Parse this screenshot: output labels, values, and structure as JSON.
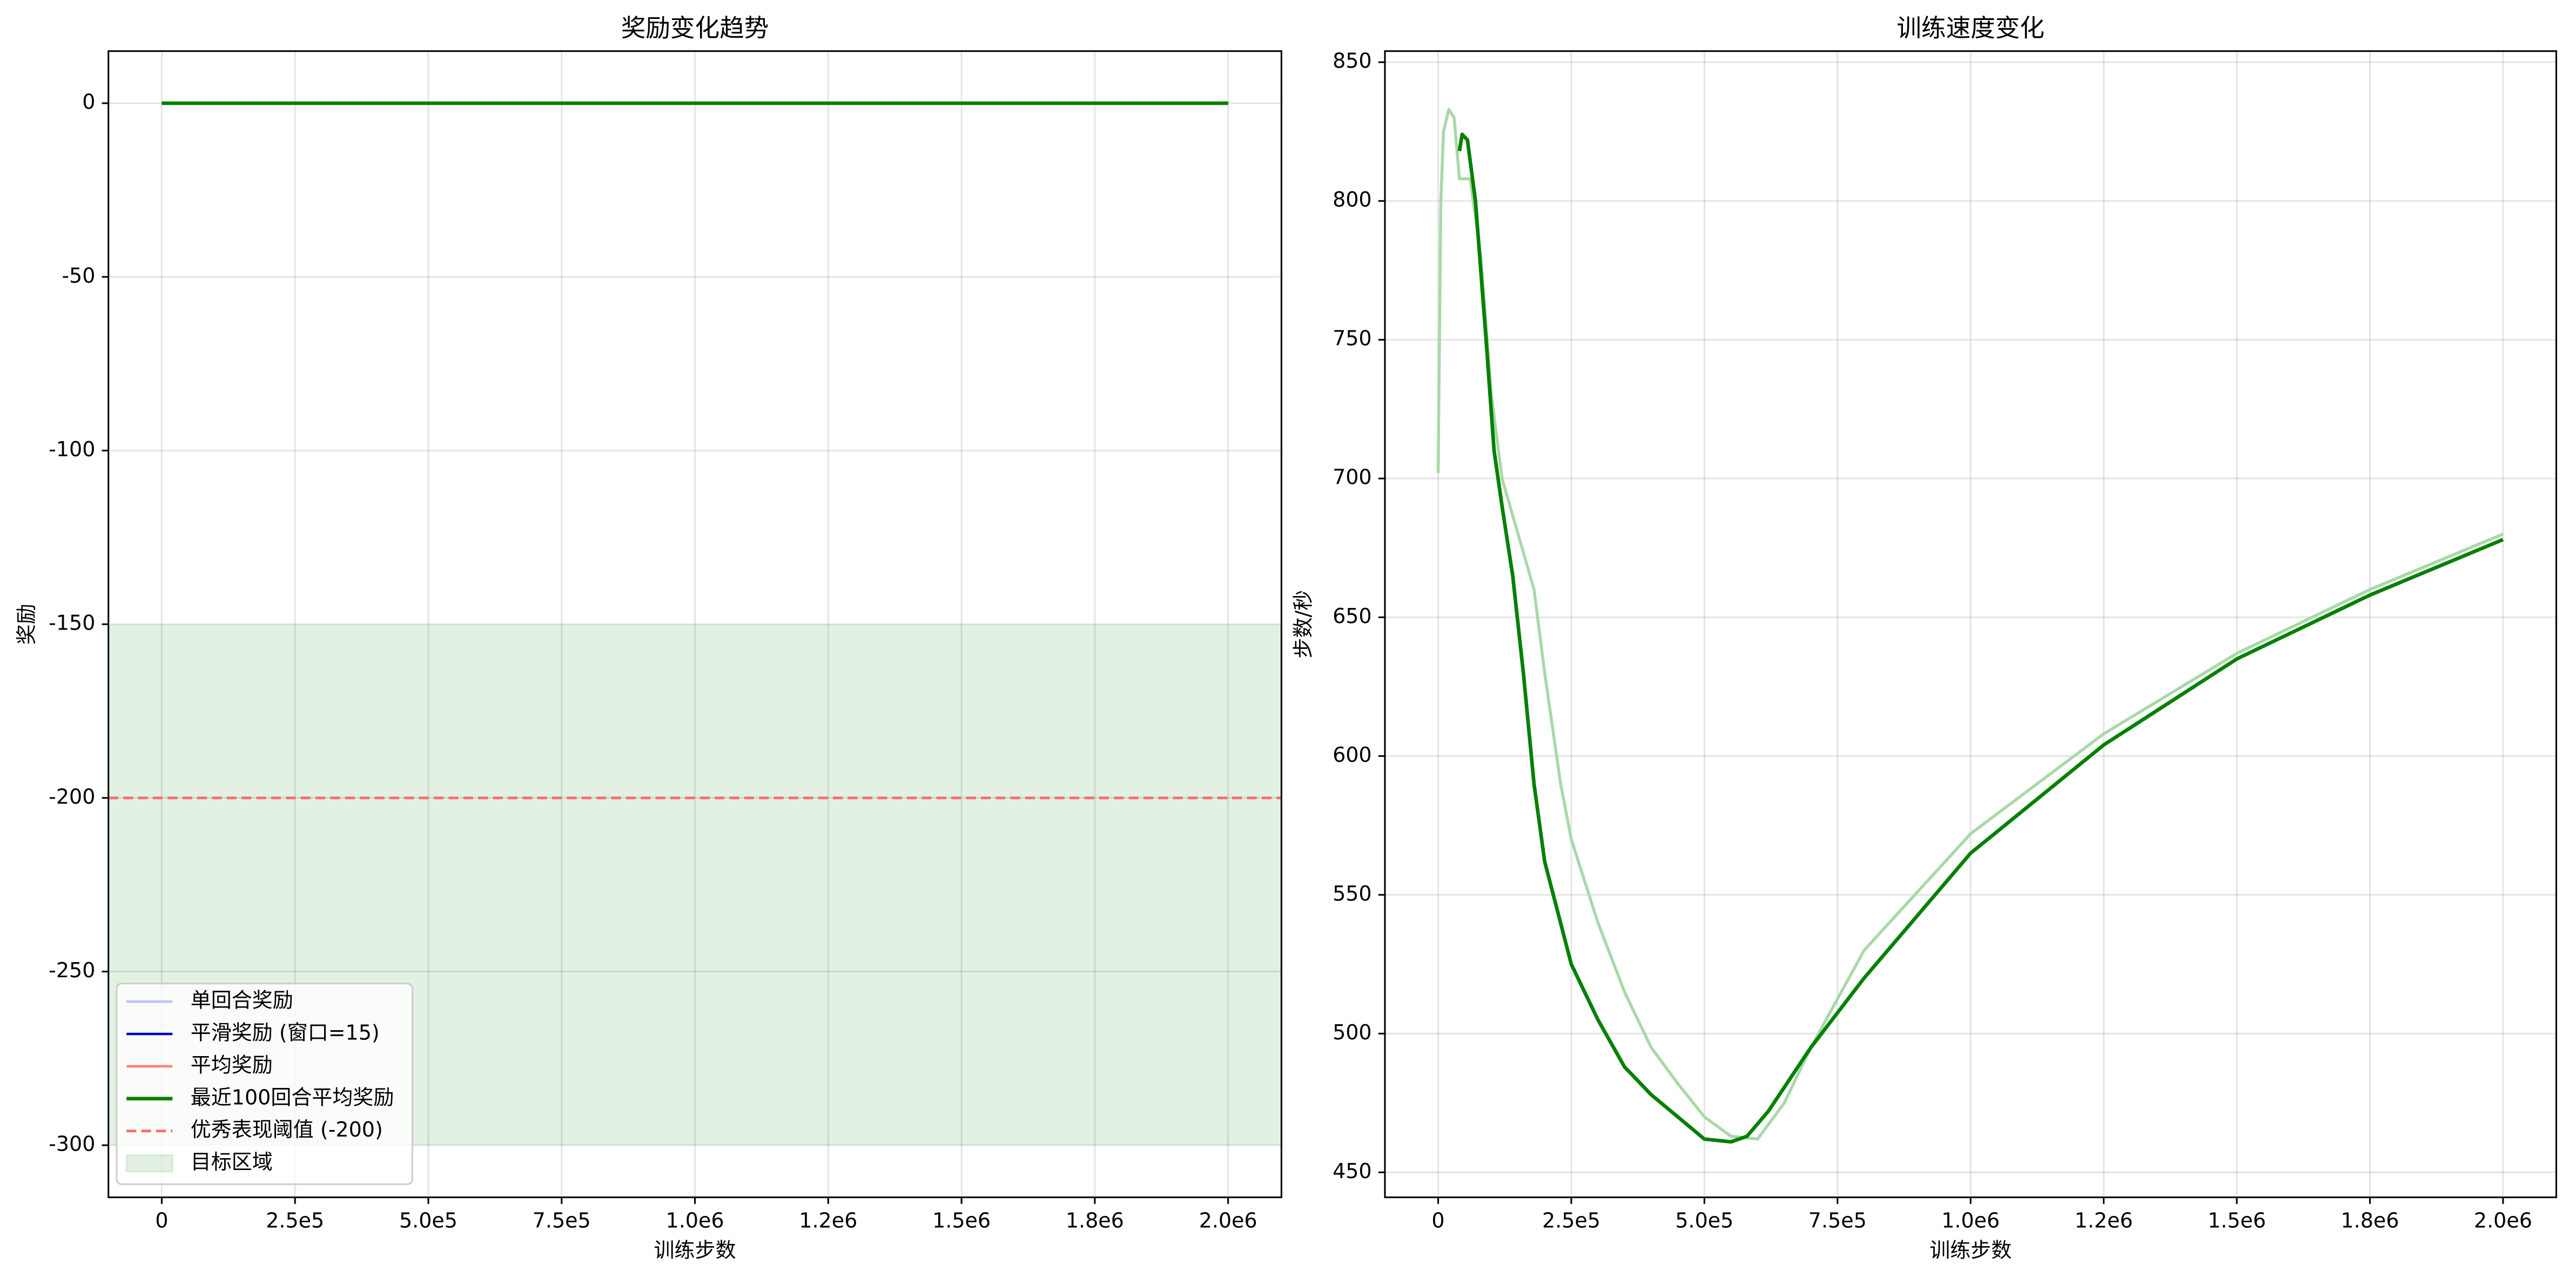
{
  "chart_data": [
    {
      "type": "line",
      "title": "奖励变化趋势",
      "xlabel": "训练步数",
      "ylabel": "奖励",
      "xlim": [
        -100000,
        2100000
      ],
      "ylim": [
        -315,
        15
      ],
      "xticks": [
        0,
        {
          "value": 250000,
          "label": "2.5e5"
        },
        {
          "value": 500000,
          "label": "5.0e5"
        },
        {
          "value": 750000,
          "label": "7.5e5"
        },
        {
          "value": 1000000,
          "label": "1.0e6"
        },
        {
          "value": 1250000,
          "label": "1.2e6"
        },
        {
          "value": 1500000,
          "label": "1.5e6"
        },
        {
          "value": 1750000,
          "label": "1.8e6"
        },
        {
          "value": 2000000,
          "label": "2.0e6"
        }
      ],
      "yticks": [
        0,
        -50,
        -100,
        -150,
        -200,
        -250,
        -300
      ],
      "grid": true,
      "legend": "lower left",
      "target_region": {
        "name": "目标区域",
        "range": [
          -300,
          -150
        ],
        "color": "#008000",
        "alpha": 0.11
      },
      "series": [
        {
          "name": "单回合奖励",
          "color": "#bfbfff",
          "width": 1.5,
          "x": [
            0,
            500000,
            1000000,
            1500000,
            2000000
          ],
          "values": [
            0,
            0,
            0,
            0,
            0
          ]
        },
        {
          "name": "平滑奖励 (窗口=15)",
          "color": "#0000cc",
          "width": 1.5,
          "x": [
            0,
            500000,
            1000000,
            1500000,
            2000000
          ],
          "values": [
            0,
            0,
            0,
            0,
            0
          ]
        },
        {
          "name": "平均奖励",
          "color": "#ff7f7f",
          "width": 1.5,
          "x": [
            0,
            500000,
            1000000,
            1500000,
            2000000
          ],
          "values": [
            0,
            0,
            0,
            0,
            0
          ]
        },
        {
          "name": "最近100回合平均奖励",
          "color": "#008000",
          "width": 2.2,
          "x": [
            0,
            500000,
            1000000,
            1500000,
            2000000
          ],
          "values": [
            0,
            0,
            0,
            0,
            0
          ]
        }
      ],
      "threshold": {
        "name": "优秀表现阈值 (-200)",
        "value": -200,
        "color": "#ff6b6b"
      }
    },
    {
      "type": "line",
      "title": "训练速度变化",
      "xlabel": "训练步数",
      "ylabel": "步数/秒",
      "xlim": [
        -100000,
        2100000
      ],
      "ylim": [
        441,
        854
      ],
      "xticks": [
        0,
        {
          "value": 250000,
          "label": "2.5e5"
        },
        {
          "value": 500000,
          "label": "5.0e5"
        },
        {
          "value": 750000,
          "label": "7.5e5"
        },
        {
          "value": 1000000,
          "label": "1.0e6"
        },
        {
          "value": 1250000,
          "label": "1.2e6"
        },
        {
          "value": 1500000,
          "label": "1.5e6"
        },
        {
          "value": 1750000,
          "label": "1.8e6"
        },
        {
          "value": 2000000,
          "label": "2.0e6"
        }
      ],
      "yticks": [
        450,
        500,
        550,
        600,
        650,
        700,
        750,
        800,
        850
      ],
      "grid": true,
      "series": [
        {
          "color": "#a8d8a8",
          "width": 1.8,
          "x": [
            0,
            5000,
            10000,
            20000,
            30000,
            40000,
            60000,
            80000,
            100000,
            120000,
            150000,
            180000,
            200000,
            230000,
            250000,
            300000,
            350000,
            400000,
            450000,
            500000,
            550000,
            600000,
            650000,
            700000,
            800000,
            1000000,
            1250000,
            1500000,
            1750000,
            2000000
          ],
          "values": [
            702,
            800,
            825,
            833,
            830,
            808,
            808,
            780,
            730,
            700,
            680,
            660,
            630,
            590,
            570,
            540,
            515,
            495,
            482,
            470,
            463,
            462,
            475,
            495,
            530,
            572,
            608,
            637,
            660,
            680
          ]
        },
        {
          "color": "#008000",
          "width": 2.2,
          "x": [
            40000,
            45000,
            55000,
            70000,
            90000,
            105000,
            120000,
            140000,
            160000,
            180000,
            200000,
            250000,
            300000,
            350000,
            400000,
            450000,
            500000,
            550000,
            580000,
            620000,
            700000,
            800000,
            1000000,
            1250000,
            1500000,
            1750000,
            2000000
          ],
          "values": [
            818,
            824,
            822,
            800,
            750,
            710,
            690,
            665,
            630,
            590,
            562,
            525,
            505,
            488,
            478,
            470,
            462,
            461,
            463,
            472,
            495,
            520,
            565,
            604,
            635,
            658,
            678
          ]
        }
      ]
    }
  ]
}
